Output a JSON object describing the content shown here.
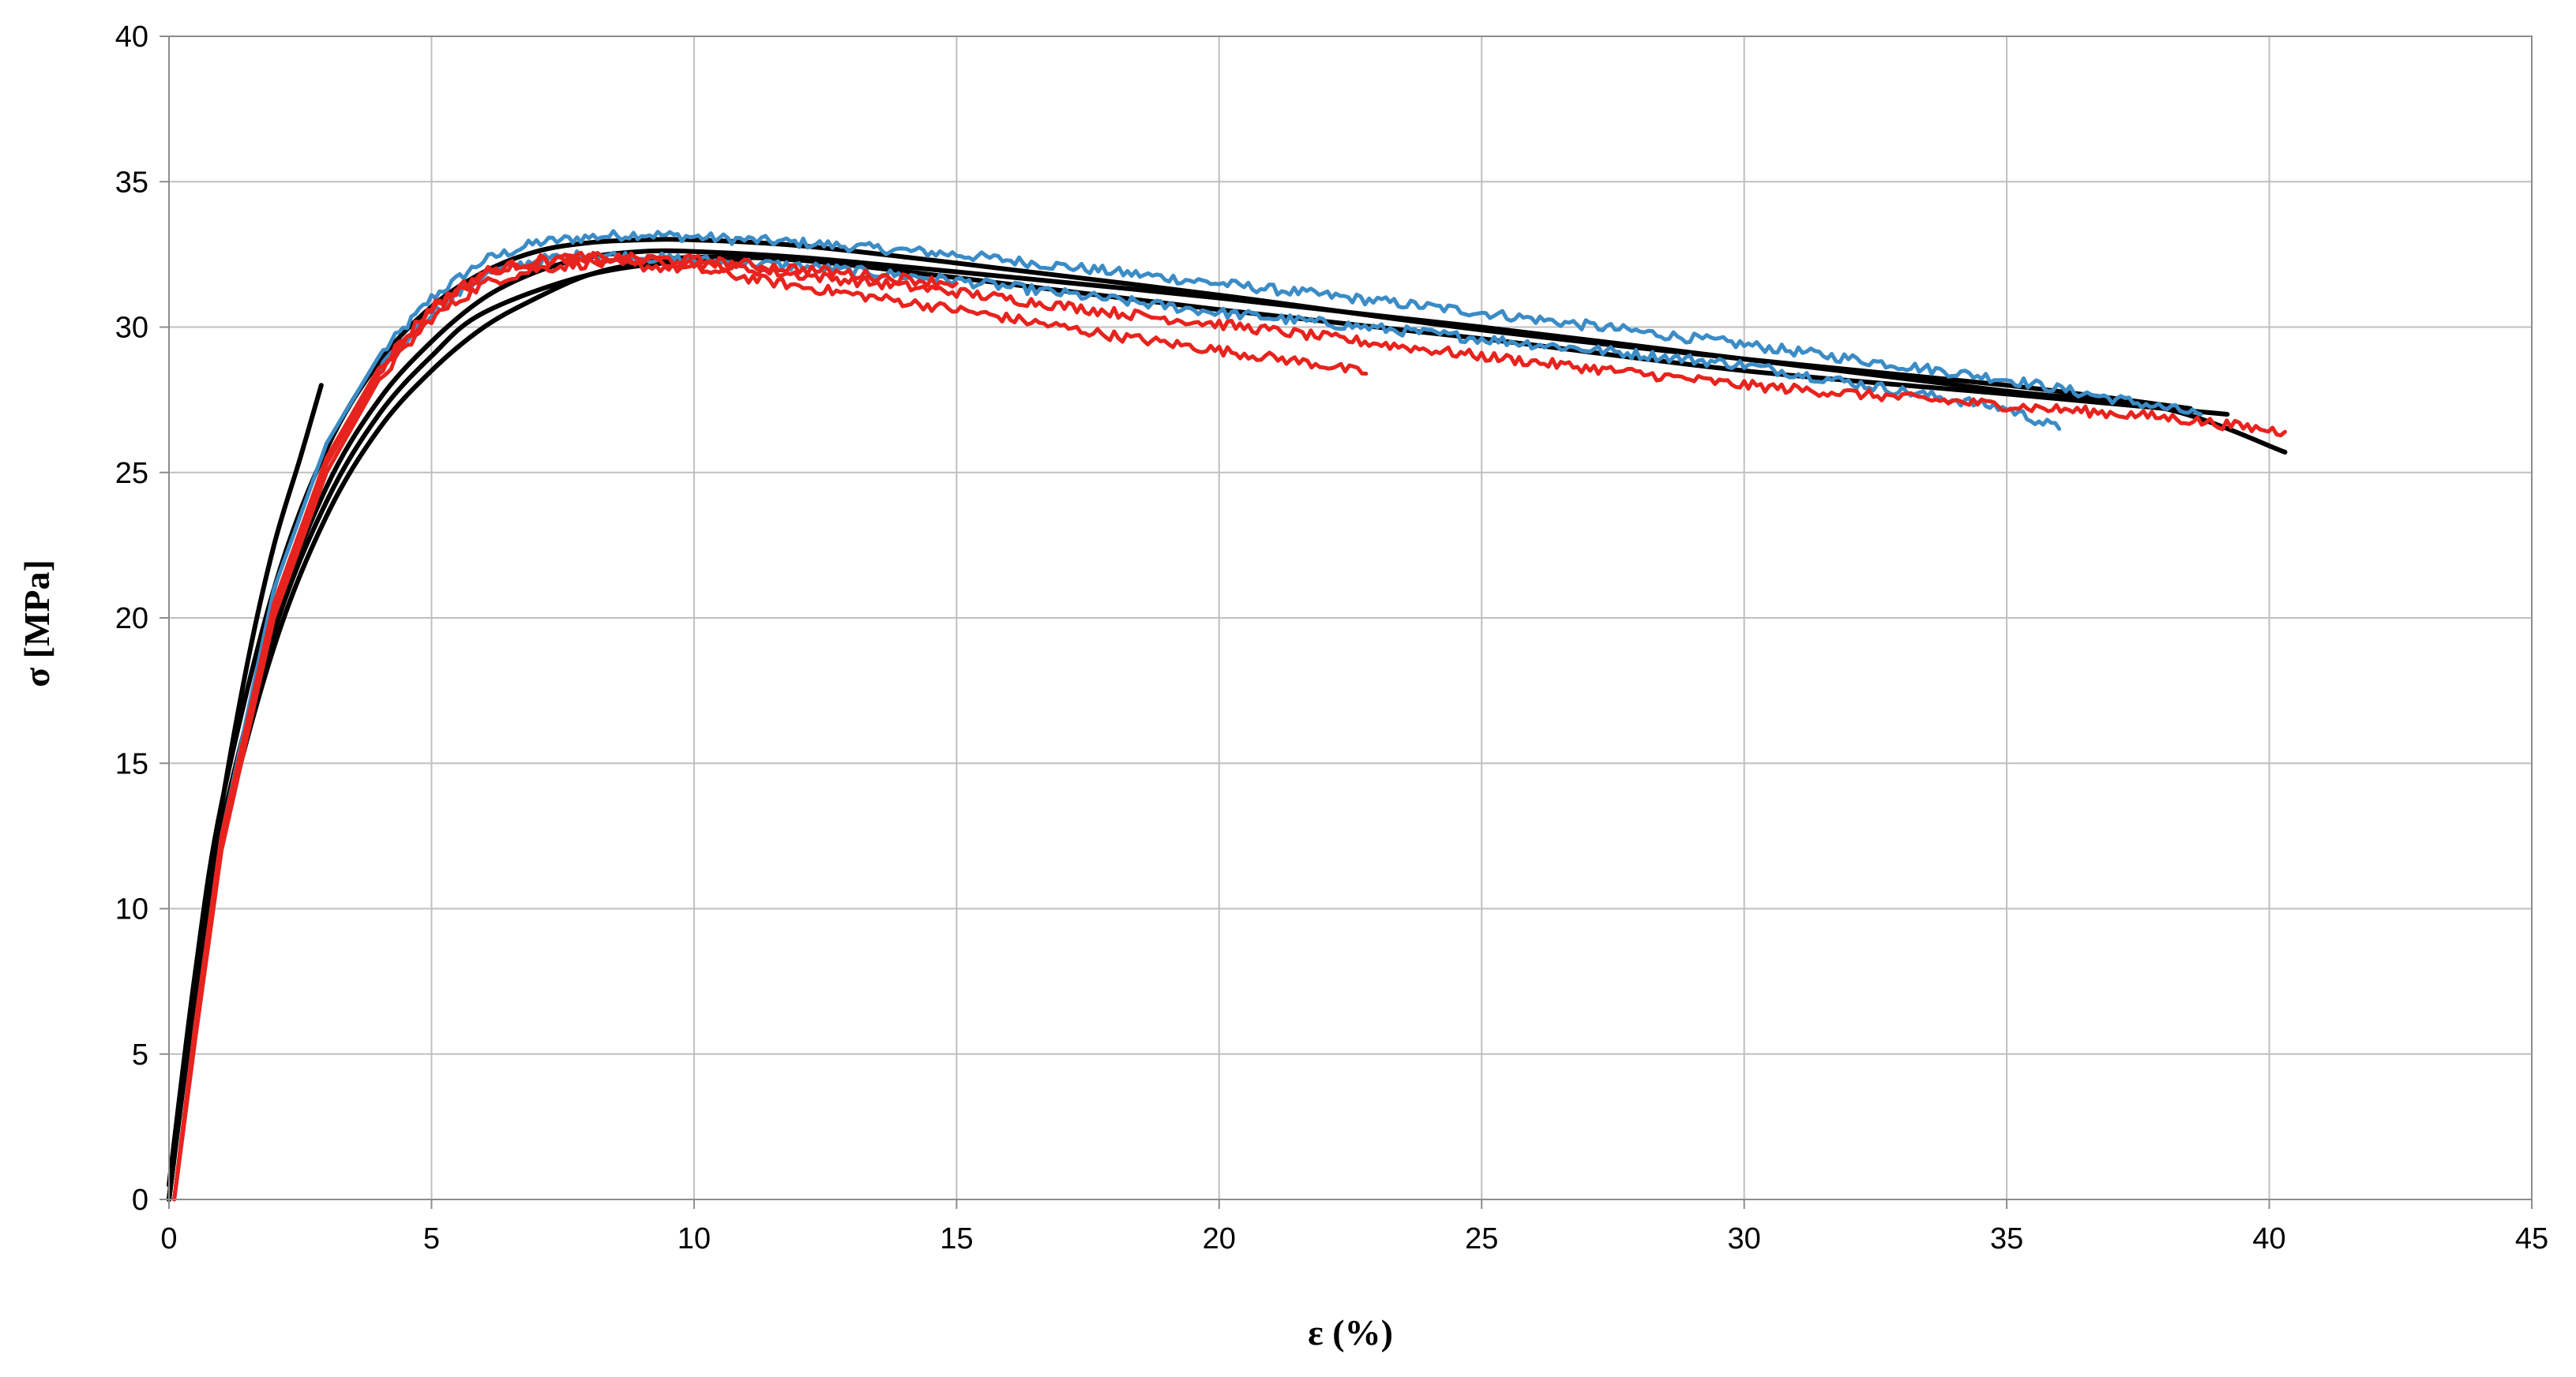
{
  "chart_data": {
    "type": "line",
    "title": "",
    "xlabel": "ε (%)",
    "ylabel": "σ [MPa]",
    "xlim": [
      0,
      45
    ],
    "ylim": [
      0,
      40
    ],
    "xticks": [
      0,
      5,
      10,
      15,
      20,
      25,
      30,
      35,
      40,
      45
    ],
    "yticks": [
      0,
      5,
      10,
      15,
      20,
      25,
      30,
      35,
      40
    ],
    "xtick_labels": [
      "0",
      "5",
      "10",
      "15",
      "20",
      "25",
      "30",
      "35",
      "40",
      "45"
    ],
    "ytick_labels": [
      "0",
      "5",
      "10",
      "15",
      "20",
      "25",
      "30",
      "35",
      "40"
    ],
    "grid": true,
    "legend": "none",
    "colors": {
      "black": "#000000",
      "blue": "#3b8cc6",
      "red": "#e8231e",
      "grid": "#bfbfbf"
    },
    "series": [
      {
        "color": "black",
        "noisy": false,
        "points": [
          [
            0,
            0
          ],
          [
            0.5,
            7.5
          ],
          [
            1,
            13.5
          ],
          [
            1.5,
            18.5
          ],
          [
            2,
            22.5
          ],
          [
            2.5,
            25.5
          ],
          [
            2.9,
            28
          ]
        ]
      },
      {
        "color": "black",
        "noisy": false,
        "points": [
          [
            0,
            0
          ],
          [
            0.5,
            7
          ],
          [
            1,
            12.5
          ],
          [
            2,
            19.5
          ],
          [
            3,
            24
          ],
          [
            4,
            27
          ],
          [
            5,
            29
          ],
          [
            6,
            30.5
          ],
          [
            8,
            31.8
          ],
          [
            10,
            32.3
          ],
          [
            11,
            32.3
          ]
        ]
      },
      {
        "color": "black",
        "noisy": false,
        "points": [
          [
            0,
            0
          ],
          [
            0.5,
            7
          ],
          [
            1,
            12.3
          ],
          [
            2,
            19
          ],
          [
            3,
            23.5
          ],
          [
            4,
            26.5
          ],
          [
            5,
            28.5
          ],
          [
            6,
            30
          ],
          [
            7,
            31
          ],
          [
            8,
            31.8
          ],
          [
            9,
            32.2
          ],
          [
            10,
            32.4
          ],
          [
            12,
            32.3
          ],
          [
            15,
            31.7
          ],
          [
            20,
            30.6
          ],
          [
            25,
            29.6
          ],
          [
            30,
            28.5
          ],
          [
            35,
            27.7
          ],
          [
            39.2,
            27
          ]
        ]
      },
      {
        "color": "black",
        "noisy": false,
        "points": [
          [
            0,
            0
          ],
          [
            0.5,
            7.2
          ],
          [
            1,
            12.8
          ],
          [
            2,
            19.8
          ],
          [
            3,
            24.5
          ],
          [
            4,
            27.5
          ],
          [
            5,
            29.5
          ],
          [
            6,
            31
          ],
          [
            7,
            31.9
          ],
          [
            8,
            32.4
          ],
          [
            9,
            32.6
          ],
          [
            10,
            32.6
          ],
          [
            12,
            32.4
          ],
          [
            15,
            31.9
          ],
          [
            20,
            31
          ],
          [
            25,
            30
          ],
          [
            30,
            28.9
          ],
          [
            35,
            27.8
          ],
          [
            38,
            27.2
          ],
          [
            40.3,
            25.7
          ]
        ]
      },
      {
        "color": "black",
        "noisy": false,
        "points": [
          [
            0,
            0.5
          ],
          [
            0.5,
            7.8
          ],
          [
            1,
            13.6
          ],
          [
            2,
            21
          ],
          [
            3,
            25.8
          ],
          [
            4,
            28.8
          ],
          [
            5,
            30.7
          ],
          [
            6,
            31.9
          ],
          [
            7,
            32.6
          ],
          [
            8,
            32.9
          ],
          [
            9,
            33
          ],
          [
            10,
            33
          ],
          [
            12,
            32.8
          ],
          [
            15,
            32.2
          ],
          [
            20,
            31.1
          ],
          [
            25,
            29.9
          ],
          [
            30,
            28.9
          ],
          [
            35,
            28
          ],
          [
            38.5,
            27.2
          ]
        ]
      },
      {
        "color": "blue",
        "noisy": true,
        "points": [
          [
            0.1,
            0
          ],
          [
            0.5,
            6
          ],
          [
            1,
            12.5
          ],
          [
            2,
            21
          ],
          [
            3,
            26
          ],
          [
            4,
            29
          ],
          [
            5,
            31
          ],
          [
            6,
            32.3
          ],
          [
            7,
            32.9
          ],
          [
            8,
            33.1
          ],
          [
            9,
            33.2
          ],
          [
            10,
            33.1
          ],
          [
            12,
            32.9
          ],
          [
            15,
            32.5
          ],
          [
            20,
            31.5
          ],
          [
            25,
            30.5
          ],
          [
            30,
            29.4
          ],
          [
            35,
            28.2
          ],
          [
            38.7,
            27
          ]
        ]
      },
      {
        "color": "blue",
        "noisy": true,
        "points": [
          [
            0.1,
            0
          ],
          [
            0.5,
            6
          ],
          [
            1,
            12.5
          ],
          [
            2,
            20.5
          ],
          [
            3,
            25.5
          ],
          [
            4,
            28.5
          ],
          [
            5,
            30.5
          ],
          [
            6,
            31.8
          ],
          [
            7,
            32.3
          ],
          [
            8,
            32.5
          ],
          [
            9,
            32.4
          ],
          [
            10,
            32.3
          ],
          [
            12,
            32.1
          ],
          [
            15,
            31.6
          ],
          [
            20,
            30.5
          ],
          [
            25,
            29.6
          ],
          [
            30,
            28.7
          ],
          [
            35,
            27.2
          ],
          [
            36,
            26.5
          ]
        ]
      },
      {
        "color": "red",
        "noisy": true,
        "points": [
          [
            0.1,
            0
          ],
          [
            0.5,
            5.5
          ],
          [
            1,
            12
          ],
          [
            2,
            20
          ],
          [
            3,
            25
          ],
          [
            4,
            28.2
          ],
          [
            5,
            30.3
          ],
          [
            6,
            31.5
          ],
          [
            7,
            32
          ],
          [
            8,
            32.2
          ],
          [
            10,
            32
          ],
          [
            12,
            31.4
          ],
          [
            15,
            30.6
          ],
          [
            18,
            29.7
          ],
          [
            20,
            29.2
          ],
          [
            22,
            28.7
          ],
          [
            22.8,
            28.4
          ]
        ]
      },
      {
        "color": "red",
        "noisy": true,
        "points": [
          [
            0.1,
            0
          ],
          [
            0.5,
            5.8
          ],
          [
            1,
            12.3
          ],
          [
            2,
            20.3
          ],
          [
            3,
            25.3
          ],
          [
            4,
            28.4
          ],
          [
            5,
            30.6
          ],
          [
            6,
            31.8
          ],
          [
            7,
            32.2
          ],
          [
            8,
            32.4
          ],
          [
            10,
            32.2
          ],
          [
            12,
            31.8
          ],
          [
            15,
            31.2
          ],
          [
            18,
            30.5
          ],
          [
            20,
            30.1
          ],
          [
            25,
            29
          ],
          [
            30,
            28
          ],
          [
            35,
            27.3
          ],
          [
            38,
            26.9
          ],
          [
            40.3,
            26.4
          ]
        ]
      },
      {
        "color": "red",
        "noisy": true,
        "points": [
          [
            0.1,
            0
          ],
          [
            0.5,
            6
          ],
          [
            1,
            12.5
          ],
          [
            2,
            20.5
          ],
          [
            3,
            25.5
          ],
          [
            4,
            28.6
          ],
          [
            5,
            30.7
          ],
          [
            6,
            31.9
          ],
          [
            7,
            32.3
          ],
          [
            8,
            32.4
          ],
          [
            10,
            32.3
          ],
          [
            12,
            32
          ],
          [
            15,
            31.5
          ]
        ]
      }
    ]
  }
}
